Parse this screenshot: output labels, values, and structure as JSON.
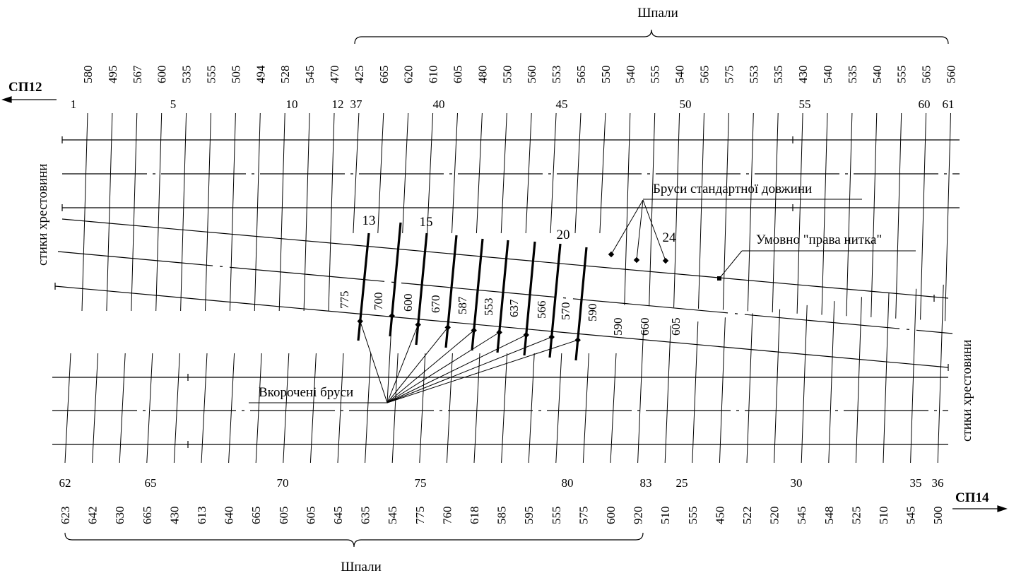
{
  "labels": {
    "top_title": "Шпали",
    "bottom_title": "Шпали",
    "left_arrow": "СП12",
    "right_arrow": "СП14",
    "left_vertical": "стики хрестовини",
    "right_vertical": "стики хрестовини",
    "standard_bars": "Бруси стандартної довжини",
    "right_rail": "Умовно \"права нитка\"",
    "shortened_bars": "Вкорочені бруси"
  },
  "top_lengths": [
    "580",
    "495",
    "567",
    "600",
    "535",
    "555",
    "505",
    "494",
    "528",
    "545",
    "470",
    "425",
    "665",
    "620",
    "610",
    "605",
    "480",
    "550",
    "560",
    "553",
    "565",
    "550",
    "540",
    "555",
    "540",
    "565",
    "575",
    "553",
    "535",
    "430",
    "540",
    "535",
    "540",
    "555",
    "565",
    "560"
  ],
  "top_index_labels": [
    "1",
    "5",
    "10",
    "12",
    "37",
    "40",
    "45",
    "50",
    "55",
    "60",
    "61"
  ],
  "bottom_lengths": [
    "623",
    "642",
    "630",
    "665",
    "430",
    "613",
    "640",
    "665",
    "605",
    "605",
    "645",
    "635",
    "545",
    "775",
    "760",
    "618",
    "585",
    "595",
    "555",
    "575",
    "600",
    "920",
    "510",
    "555",
    "450",
    "522",
    "520",
    "545",
    "548",
    "525",
    "510",
    "545",
    "500"
  ],
  "bottom_index_labels": [
    "62",
    "65",
    "70",
    "75",
    "80",
    "83",
    "25",
    "30",
    "35",
    "36"
  ],
  "shortened_bar_lengths": [
    "775",
    "700",
    "600",
    "670",
    "587",
    "553",
    "637",
    "566",
    "570",
    "590"
  ],
  "shortened_index_labels": [
    "13",
    "15",
    "20"
  ],
  "standard_bar_lengths": [
    "590",
    "660",
    "605"
  ],
  "standard_index_labels": [
    "24"
  ]
}
